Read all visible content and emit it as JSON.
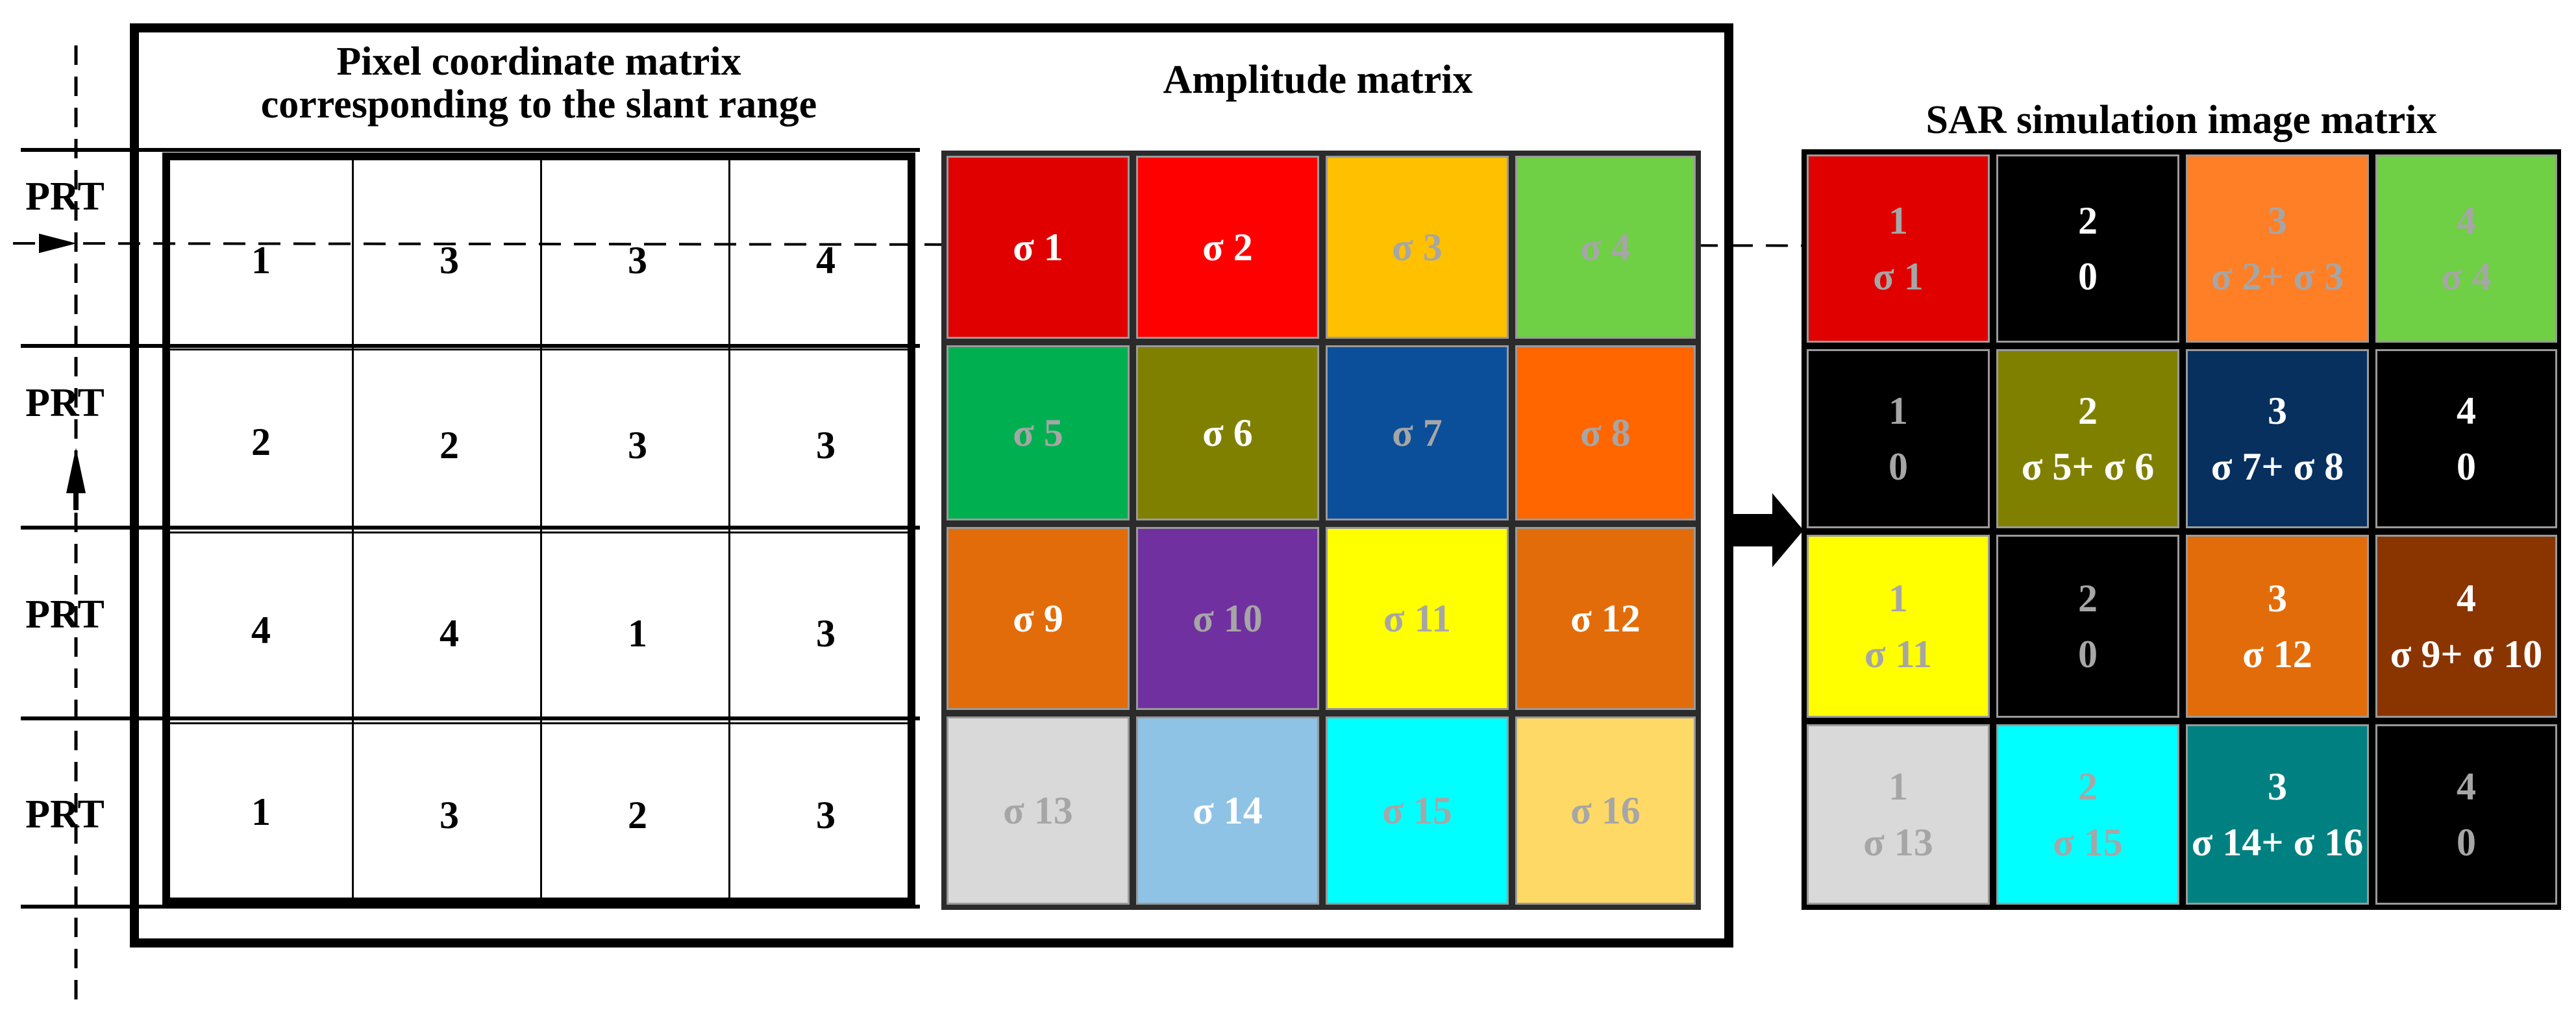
{
  "titles": {
    "pixel_matrix_line1": "Pixel coordinate matrix",
    "pixel_matrix_line2": "corresponding to the slant range",
    "amplitude_matrix": "Amplitude matrix",
    "sar_matrix": "SAR simulation image matrix"
  },
  "prt_labels": [
    "PRT",
    "PRT",
    "PRT",
    "PRT"
  ],
  "pixel_coordinates": [
    [
      "1",
      "3",
      "3",
      "4"
    ],
    [
      "2",
      "2",
      "3",
      "3"
    ],
    [
      "4",
      "4",
      "1",
      "3"
    ],
    [
      "1",
      "3",
      "2",
      "3"
    ]
  ],
  "amplitude_cells": [
    [
      {
        "label": "σ 1",
        "bg": "#e00000",
        "fg": "#ffffff"
      },
      {
        "label": "σ 2",
        "bg": "#ff0000",
        "fg": "#ffffff"
      },
      {
        "label": "σ 3",
        "bg": "#ffc000",
        "fg": "#a6a6a6"
      },
      {
        "label": "σ 4",
        "bg": "#6fcf45",
        "fg": "#a6a6a6"
      }
    ],
    [
      {
        "label": "σ 5",
        "bg": "#00b050",
        "fg": "#a6a6a6"
      },
      {
        "label": "σ 6",
        "bg": "#808000",
        "fg": "#ffffff"
      },
      {
        "label": "σ 7",
        "bg": "#0b4f9a",
        "fg": "#a6a6a6"
      },
      {
        "label": "σ 8",
        "bg": "#ff6600",
        "fg": "#a6a6a6"
      }
    ],
    [
      {
        "label": "σ 9",
        "bg": "#e36c0a",
        "fg": "#ffffff"
      },
      {
        "label": "σ 10",
        "bg": "#7030a0",
        "fg": "#a6a6a6"
      },
      {
        "label": "σ 11",
        "bg": "#ffff00",
        "fg": "#a6a6a6"
      },
      {
        "label": "σ 12",
        "bg": "#e36c0a",
        "fg": "#ffffff"
      }
    ],
    [
      {
        "label": "σ 13",
        "bg": "#d9d9d9",
        "fg": "#a6a6a6"
      },
      {
        "label": "σ 14",
        "bg": "#8ec3e6",
        "fg": "#ffffff"
      },
      {
        "label": "σ 15",
        "bg": "#00ffff",
        "fg": "#a6a6a6"
      },
      {
        "label": "σ 16",
        "bg": "#ffd966",
        "fg": "#a6a6a6"
      }
    ]
  ],
  "sar_cells": [
    [
      {
        "index": "1",
        "value": "σ 1",
        "bg": "#e00000",
        "fg": "#a6a6a6"
      },
      {
        "index": "2",
        "value": "0",
        "bg": "#000000",
        "fg": "#ffffff"
      },
      {
        "index": "3",
        "value": "σ 2+ σ 3",
        "bg": "#ff7f27",
        "fg": "#a6a6a6"
      },
      {
        "index": "4",
        "value": "σ 4",
        "bg": "#6fcf45",
        "fg": "#a6a6a6"
      }
    ],
    [
      {
        "index": "1",
        "value": "0",
        "bg": "#000000",
        "fg": "#a6a6a6"
      },
      {
        "index": "2",
        "value": "σ 5+ σ 6",
        "bg": "#808000",
        "fg": "#ffffff"
      },
      {
        "index": "3",
        "value": "σ 7+ σ 8",
        "bg": "#07305e",
        "fg": "#ffffff"
      },
      {
        "index": "4",
        "value": "0",
        "bg": "#000000",
        "fg": "#ffffff"
      }
    ],
    [
      {
        "index": "1",
        "value": "σ 11",
        "bg": "#ffff00",
        "fg": "#a6a6a6"
      },
      {
        "index": "2",
        "value": "0",
        "bg": "#000000",
        "fg": "#a6a6a6"
      },
      {
        "index": "3",
        "value": "σ 12",
        "bg": "#e36c0a",
        "fg": "#ffffff"
      },
      {
        "index": "4",
        "value": "σ 9+ σ 10",
        "bg": "#8a3500",
        "fg": "#ffffff"
      }
    ],
    [
      {
        "index": "1",
        "value": "σ 13",
        "bg": "#d9d9d9",
        "fg": "#a6a6a6"
      },
      {
        "index": "2",
        "value": "σ 15",
        "bg": "#00ffff",
        "fg": "#a6a6a6"
      },
      {
        "index": "3",
        "value": "σ 14+ σ 16",
        "bg": "#008080",
        "fg": "#ffffff"
      },
      {
        "index": "4",
        "value": "0",
        "bg": "#000000",
        "fg": "#a6a6a6"
      }
    ]
  ]
}
